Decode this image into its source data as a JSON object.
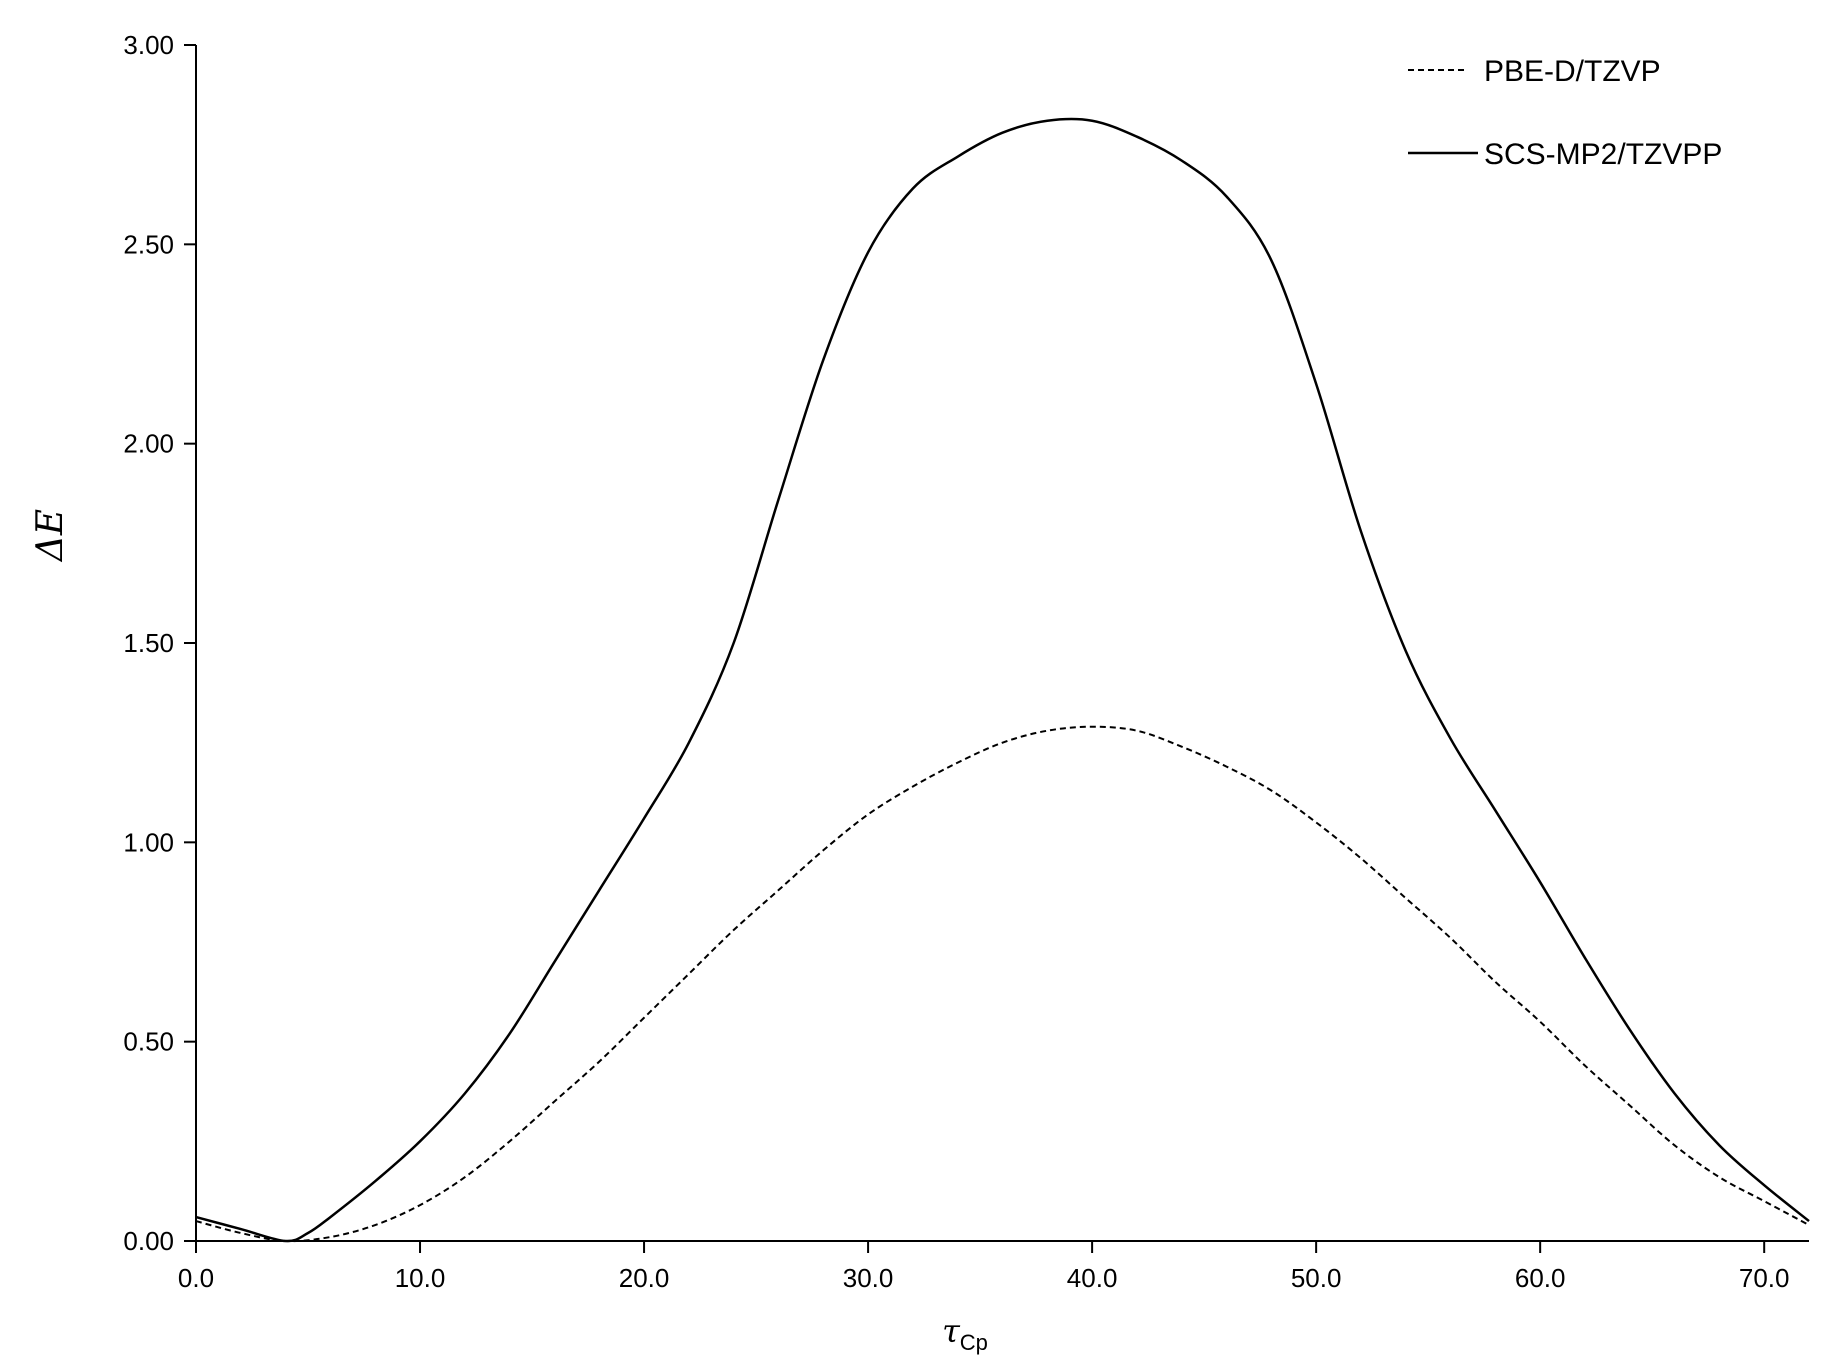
{
  "chart_data": {
    "type": "line",
    "ylabel": "ΔE",
    "xlabel": "τCp",
    "xlabel_main": "τ",
    "xlabel_sub": "Cp",
    "xlim": [
      0,
      72
    ],
    "ylim": [
      0,
      3
    ],
    "xticks": [
      0,
      10,
      20,
      30,
      40,
      50,
      60,
      70
    ],
    "xtick_labels": [
      "0.0",
      "10.0",
      "20.0",
      "30.0",
      "40.0",
      "50.0",
      "60.0",
      "70.0"
    ],
    "yticks": [
      0,
      0.5,
      1,
      1.5,
      2,
      2.5,
      3
    ],
    "ytick_labels": [
      "0.00",
      "0.50",
      "1.00",
      "1.50",
      "2.00",
      "2.50",
      "3.00"
    ],
    "grid": false,
    "legend_position": "top-right",
    "series": [
      {
        "name": "PBE-D/TZVP",
        "style": "dashed",
        "color": "#000000",
        "x": [
          0,
          2,
          4,
          6,
          8,
          10,
          12,
          14,
          16,
          18,
          20,
          22,
          24,
          26,
          28,
          30,
          32,
          34,
          36,
          38,
          40,
          42,
          44,
          46,
          48,
          50,
          52,
          54,
          56,
          58,
          60,
          62,
          64,
          66,
          68,
          70,
          72
        ],
        "values": [
          0.05,
          0.02,
          0.0,
          0.01,
          0.04,
          0.09,
          0.16,
          0.25,
          0.35,
          0.45,
          0.56,
          0.67,
          0.78,
          0.88,
          0.98,
          1.07,
          1.14,
          1.2,
          1.25,
          1.28,
          1.29,
          1.28,
          1.24,
          1.19,
          1.13,
          1.05,
          0.96,
          0.86,
          0.76,
          0.65,
          0.55,
          0.44,
          0.34,
          0.24,
          0.16,
          0.1,
          0.04
        ]
      },
      {
        "name": "SCS-MP2/TZVPP",
        "style": "solid",
        "color": "#000000",
        "x": [
          0,
          2,
          4,
          5,
          6,
          8,
          10,
          12,
          14,
          16,
          18,
          20,
          22,
          24,
          26,
          28,
          30,
          32,
          34,
          36,
          38,
          40,
          42,
          44,
          46,
          48,
          50,
          52,
          54,
          56,
          58,
          60,
          62,
          64,
          66,
          68,
          70,
          72
        ],
        "values": [
          0.06,
          0.03,
          0.0,
          0.02,
          0.06,
          0.15,
          0.25,
          0.37,
          0.52,
          0.7,
          0.88,
          1.06,
          1.25,
          1.5,
          1.86,
          2.21,
          2.48,
          2.64,
          2.72,
          2.78,
          2.81,
          2.81,
          2.77,
          2.71,
          2.62,
          2.46,
          2.15,
          1.78,
          1.48,
          1.26,
          1.08,
          0.9,
          0.71,
          0.53,
          0.37,
          0.24,
          0.14,
          0.05
        ]
      }
    ]
  }
}
